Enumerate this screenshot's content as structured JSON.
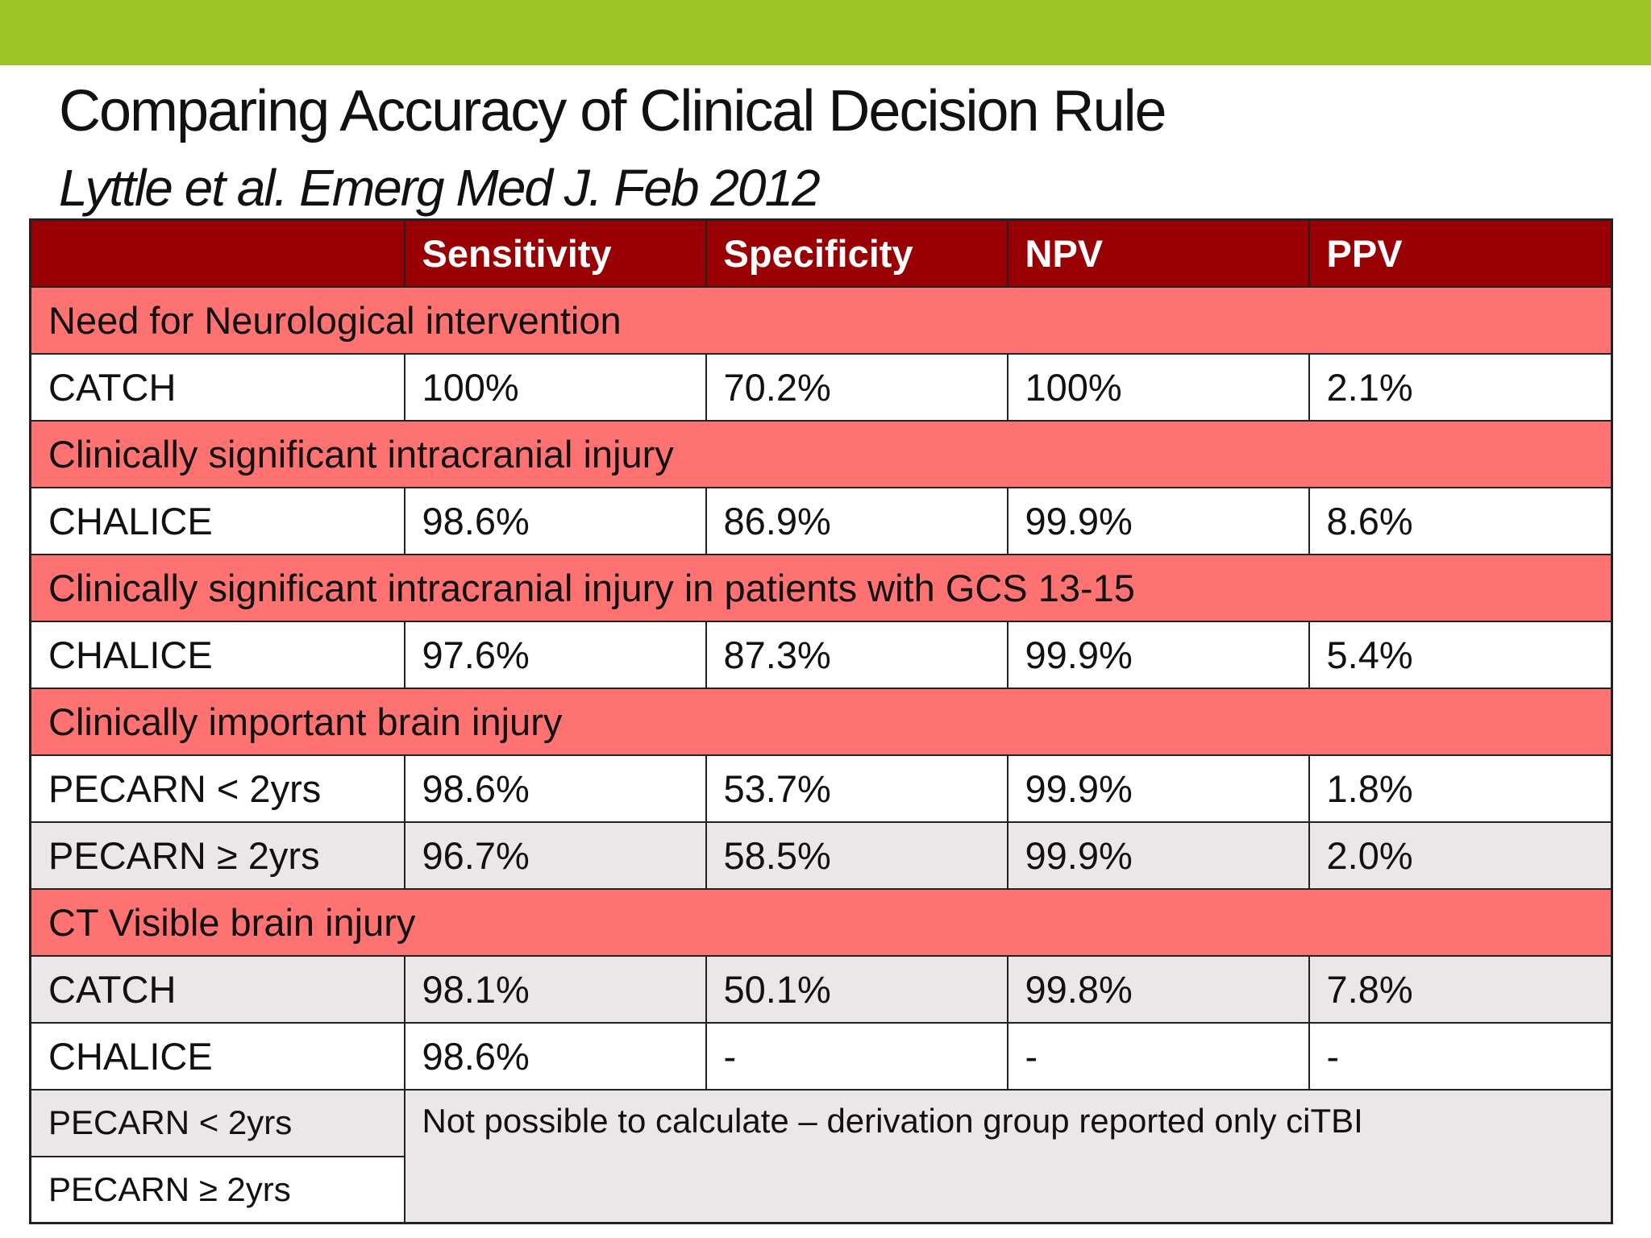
{
  "colors": {
    "top_bar": "#9bc624",
    "header_row": "#990004",
    "section_row": "#ff7272",
    "shaded_row": "#ebe6e7"
  },
  "title": "Comparing Accuracy of Clinical Decision Rule",
  "subtitle": "Lyttle et al. Emerg Med J. Feb 2012",
  "table": {
    "headers": [
      "",
      "Sensitivity",
      "Specificity",
      "NPV",
      "PPV"
    ],
    "sections": [
      {
        "title": "Need for Neurological intervention",
        "rows": [
          {
            "label": "CATCH",
            "values": [
              "100%",
              "70.2%",
              "100%",
              "2.1%"
            ]
          }
        ]
      },
      {
        "title": "Clinically significant intracranial injury",
        "rows": [
          {
            "label": "CHALICE",
            "values": [
              "98.6%",
              "86.9%",
              "99.9%",
              "8.6%"
            ]
          }
        ]
      },
      {
        "title": "Clinically significant intracranial injury in patients with GCS 13-15",
        "rows": [
          {
            "label": "CHALICE",
            "values": [
              "97.6%",
              "87.3%",
              "99.9%",
              "5.4%"
            ]
          }
        ]
      },
      {
        "title": "Clinically important brain injury",
        "rows": [
          {
            "label": "PECARN < 2yrs",
            "values": [
              "98.6%",
              "53.7%",
              "99.9%",
              "1.8%"
            ]
          },
          {
            "label": "PECARN ≥ 2yrs",
            "values": [
              "96.7%",
              "58.5%",
              "99.9%",
              "2.0%"
            ]
          }
        ]
      },
      {
        "title": "CT Visible brain injury",
        "rows": [
          {
            "label": "CATCH",
            "values": [
              "98.1%",
              "50.1%",
              "99.8%",
              "7.8%"
            ]
          },
          {
            "label": "CHALICE",
            "values": [
              "98.6%",
              "-",
              "-",
              "-"
            ]
          },
          {
            "label": "PECARN < 2yrs"
          },
          {
            "label": "PECARN ≥ 2yrs"
          }
        ],
        "note": "Not possible to calculate – derivation group reported only ciTBI"
      }
    ]
  }
}
